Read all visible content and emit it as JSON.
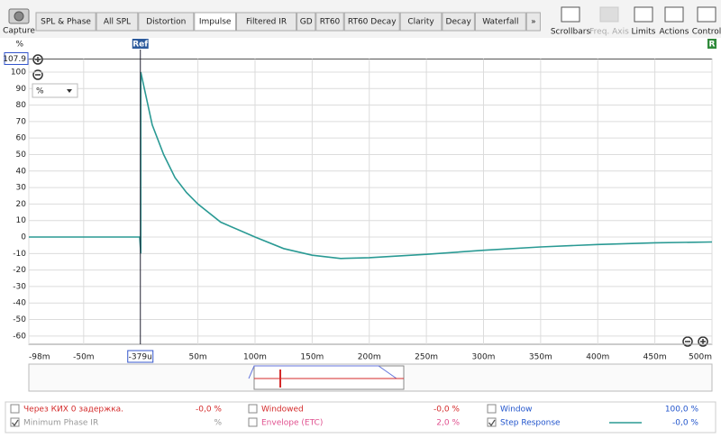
{
  "toolbar": {
    "capture": "Capture",
    "tabs": [
      "SPL & Phase",
      "All SPL",
      "Distortion",
      "Impulse",
      "Filtered IR",
      "GD",
      "RT60",
      "RT60 Decay",
      "Clarity",
      "Decay",
      "Waterfall",
      "»"
    ],
    "active_tab": 3,
    "tools": [
      "Scrollbars",
      "Freq. Axis",
      "Limits",
      "Actions",
      "Control"
    ]
  },
  "chart_data": {
    "type": "line",
    "y_unit": "%",
    "unit_selector": "%",
    "ref_label": "Ref",
    "right_flag": "R",
    "cursor": {
      "value": -0.000379,
      "label": "-379u"
    },
    "x": [
      -0.098,
      -0.001,
      0,
      0,
      0.01,
      0.02,
      0.03,
      0.04,
      0.05,
      0.07,
      0.1,
      0.125,
      0.15,
      0.175,
      0.2,
      0.25,
      0.3,
      0.35,
      0.4,
      0.45,
      0.5
    ],
    "series": [
      {
        "name": "Step Response",
        "color": "#2a9a94",
        "values": [
          0,
          0,
          -10,
          100,
          68,
          50,
          36,
          27,
          20,
          9,
          0,
          -7,
          -11,
          -13,
          -12.5,
          -10.5,
          -8,
          -6,
          -4.5,
          -3.5,
          -3
        ]
      }
    ],
    "xlim": [
      -0.098,
      0.5
    ],
    "ylim": [
      -65,
      107.9
    ],
    "xticks": [
      {
        "value": -0.098,
        "label": "-98m"
      },
      {
        "value": -0.05,
        "label": "-50m"
      },
      {
        "value": 0.05,
        "label": "50m"
      },
      {
        "value": 0.1,
        "label": "100m"
      },
      {
        "value": 0.15,
        "label": "150m"
      },
      {
        "value": 0.2,
        "label": "200m"
      },
      {
        "value": 0.25,
        "label": "250m"
      },
      {
        "value": 0.3,
        "label": "300m"
      },
      {
        "value": 0.35,
        "label": "350m"
      },
      {
        "value": 0.4,
        "label": "400m"
      },
      {
        "value": 0.45,
        "label": "450m"
      },
      {
        "value": 0.5,
        "label": "500m"
      }
    ],
    "yticks": [
      107.9,
      100,
      90,
      80,
      70,
      60,
      50,
      40,
      30,
      20,
      10,
      0,
      -10,
      -20,
      -30,
      -40,
      -50,
      -60
    ],
    "grid": true
  },
  "panel": {
    "items": [
      {
        "label": "Через КИХ 0 задержка.",
        "value": "-0,0 %",
        "checked": false,
        "color": "#d42a2a"
      },
      {
        "label": "Windowed",
        "value": "-0,0 %",
        "checked": false,
        "color": "#d42a2a"
      },
      {
        "label": "Window",
        "value": "100,0 %",
        "checked": false,
        "color": "#2255cc"
      },
      {
        "label": "Minimum Phase IR",
        "value": "%",
        "checked": true,
        "color": "#999999"
      },
      {
        "label": "Envelope (ETC)",
        "value": "2,0 %",
        "checked": false,
        "color": "#e0508f"
      },
      {
        "value": "-0,0 %",
        "checked": true,
        "color": "#2255cc"
      }
    ]
  }
}
